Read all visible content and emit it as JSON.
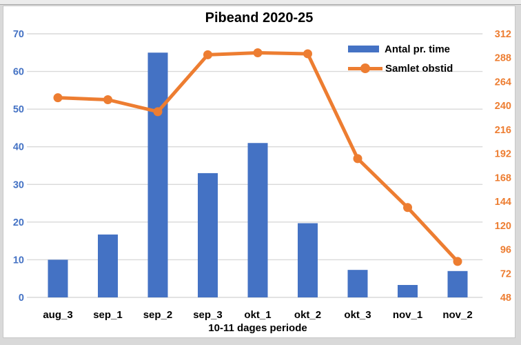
{
  "chart_data": {
    "type": "combo",
    "title": "Pibeand 2020-25",
    "xlabel": "10-11 dages periode",
    "categories": [
      "aug_3",
      "sep_1",
      "sep_2",
      "sep_3",
      "okt_1",
      "okt_2",
      "okt_3",
      "nov_1",
      "nov_2"
    ],
    "series": [
      {
        "name": "Antal pr. time",
        "type": "bar",
        "axis": "left",
        "color": "#4472C4",
        "values": [
          10,
          16.7,
          65,
          33,
          41,
          19.7,
          7.3,
          3.3,
          7
        ]
      },
      {
        "name": "Samlet obstid",
        "type": "line",
        "axis": "right",
        "color": "#ED7D31",
        "values": [
          248,
          246,
          234,
          291,
          293,
          292,
          187,
          138,
          84
        ]
      }
    ],
    "left_axis": {
      "min": 0,
      "max": 70,
      "step": 10,
      "ticks": [
        0,
        10,
        20,
        30,
        40,
        50,
        60,
        70
      ],
      "color": "#4472C4"
    },
    "right_axis": {
      "min": 48,
      "max": 312,
      "step": 24,
      "ticks": [
        48,
        72,
        96,
        120,
        144,
        168,
        192,
        216,
        240,
        264,
        288,
        312
      ],
      "color": "#ED7D31"
    },
    "grid": true,
    "legend_position": "top-right",
    "colors": {
      "gridline": "#d9d9d9",
      "frame_border": "#c6c6c6",
      "text": "#000000",
      "background": "#ffffff"
    }
  }
}
